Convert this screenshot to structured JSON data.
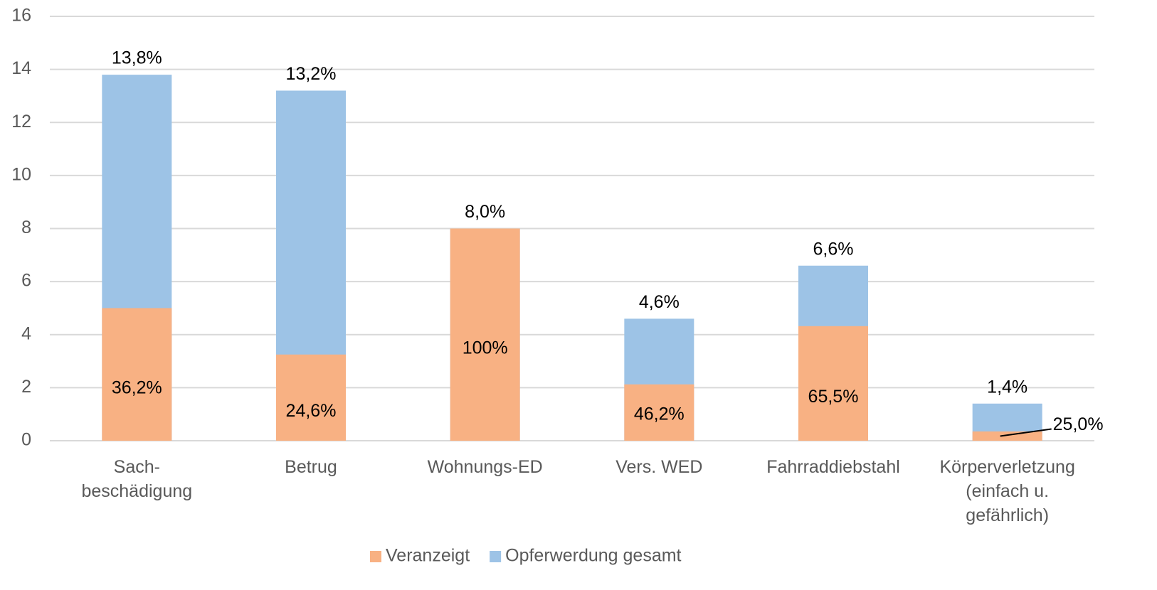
{
  "chart_data": {
    "type": "bar",
    "stacked": false,
    "categories": [
      "Sach-\nbeschädigung",
      "Betrug",
      "Wohnungs-ED",
      "Vers. WED",
      "Fahrraddiebstahl",
      "Körperverletzung\n(einfach u.\ngefährlich)"
    ],
    "series": [
      {
        "name": "Opferwerdung gesamt",
        "color": "#9dc3e6",
        "values": [
          13.8,
          13.2,
          8.0,
          4.6,
          6.6,
          1.4
        ],
        "value_labels": [
          "13,8%",
          "13,2%",
          "8,0%",
          "4,6%",
          "6,6%",
          "1,4%"
        ]
      },
      {
        "name": "Veranzeigt",
        "color": "#f8b183",
        "values": [
          5.0,
          3.25,
          8.0,
          2.125,
          4.32,
          0.35
        ],
        "annotations": [
          "36,2%",
          "24,6%",
          "100%",
          "46,2%",
          "65,5%",
          "25,0%"
        ]
      }
    ],
    "ylim": [
      0,
      16
    ],
    "yticks": [
      0,
      2,
      4,
      6,
      8,
      10,
      12,
      14,
      16
    ],
    "grid": true,
    "legend": "bottom"
  }
}
